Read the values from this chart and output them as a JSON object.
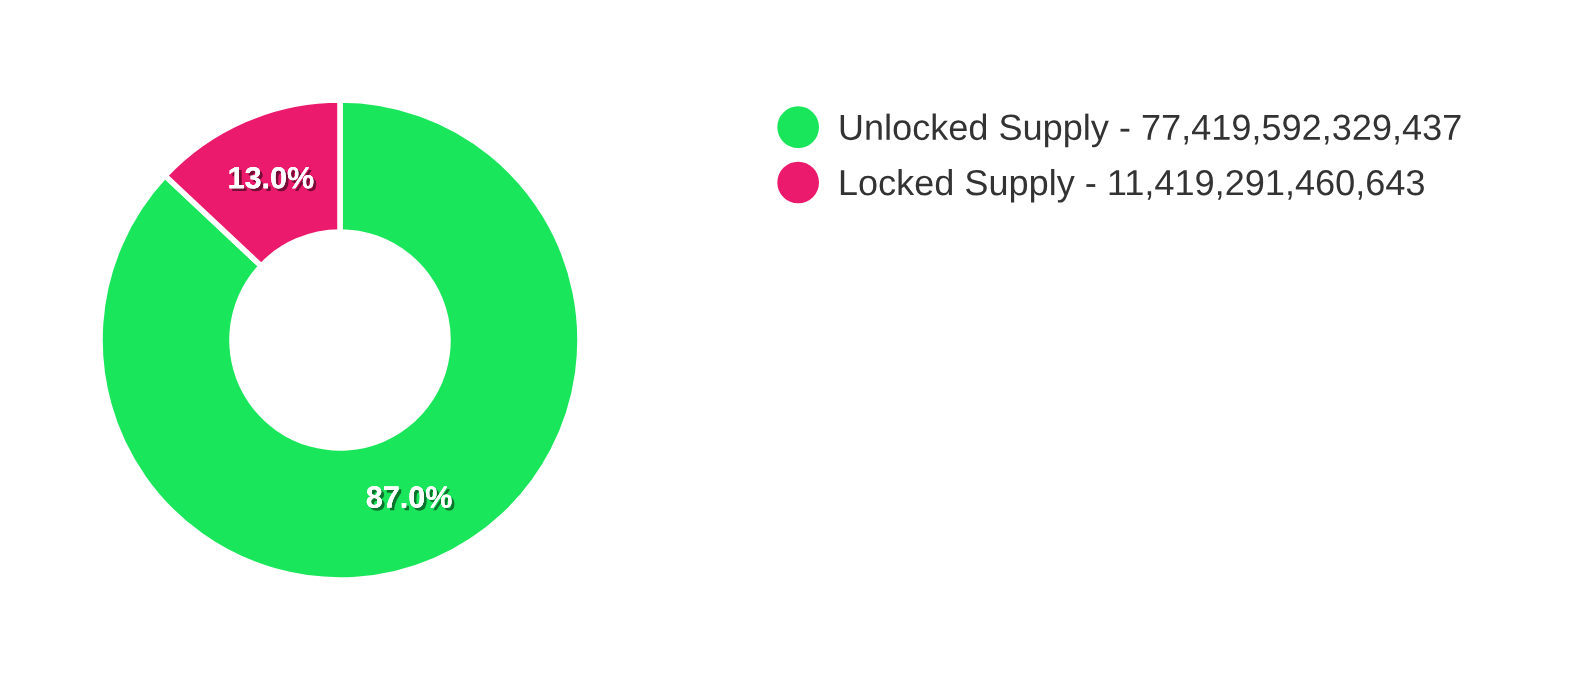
{
  "chart_data": {
    "type": "donut",
    "categories": [
      "Unlocked Supply - 77,419,592,329,437",
      "Locked Supply - 11,419,291,460,643"
    ],
    "values": [
      87.0,
      13.0
    ],
    "colors": [
      "#19e65a",
      "#ec1a6c"
    ],
    "value_labels": [
      "87.0%",
      "13.0%"
    ],
    "legend": "right"
  }
}
